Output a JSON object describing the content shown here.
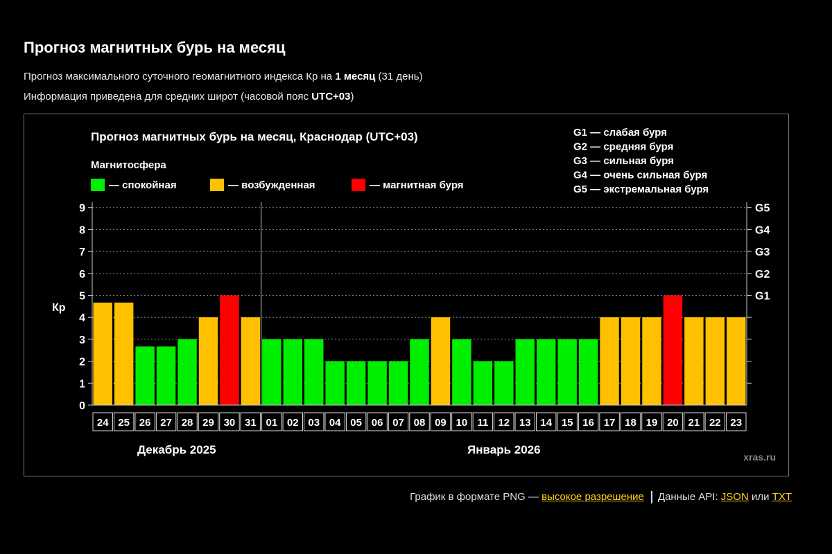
{
  "page": {
    "title": "Прогноз магнитных бурь на месяц",
    "info1": {
      "prefix": "Прогноз максимального суточного геомагнитного индекса Кр на ",
      "bold": "1 месяц",
      "suffix": " (31 день)"
    },
    "info2": {
      "prefix": "Информация приведена для средних широт (часовой пояс ",
      "bold": "UTC+03",
      "suffix": ")"
    }
  },
  "footer": {
    "png_label": "График в формате PNG — ",
    "png_link": "высокое разрешение",
    "api_label": "Данные API: ",
    "json_link": "JSON",
    "or_label": " или ",
    "txt_link": "TXT"
  },
  "colors": {
    "calm": "#00ee00",
    "excited": "#ffc000",
    "storm": "#ff0000"
  },
  "chart_data": {
    "type": "bar",
    "title": "Прогноз магнитных бурь на месяц, Краснодар (UTC+03)",
    "ylabel": "Кр",
    "ylim": [
      0,
      9
    ],
    "yticks": [
      "0",
      "1",
      "2",
      "3",
      "4",
      "5",
      "6",
      "7",
      "8",
      "9"
    ],
    "right_ticks": [
      {
        "value": 5,
        "label": "G1"
      },
      {
        "value": 6,
        "label": "G2"
      },
      {
        "value": 7,
        "label": "G3"
      },
      {
        "value": 8,
        "label": "G4"
      },
      {
        "value": 9,
        "label": "G5"
      }
    ],
    "grid": true,
    "legend_title": "Магнитосфера",
    "legend": [
      {
        "label": "— спокойная",
        "status": "calm"
      },
      {
        "label": "— возбужденная",
        "status": "excited"
      },
      {
        "label": "— магнитная буря",
        "status": "storm"
      }
    ],
    "g_legend": [
      "G1 — слабая буря",
      "G2 — средняя буря",
      "G3 — сильная буря",
      "G4 — очень сильная буря",
      "G5 — экстремальная буря"
    ],
    "months": [
      {
        "label": "Декабрь 2025",
        "start": 0,
        "end": 7
      },
      {
        "label": "Январь 2026",
        "start": 8,
        "end": 30
      }
    ],
    "categories": [
      "24",
      "25",
      "26",
      "27",
      "28",
      "29",
      "30",
      "31",
      "01",
      "02",
      "03",
      "04",
      "05",
      "06",
      "07",
      "08",
      "09",
      "10",
      "11",
      "12",
      "13",
      "14",
      "15",
      "16",
      "17",
      "18",
      "19",
      "20",
      "21",
      "22",
      "23"
    ],
    "values": [
      4.67,
      4.67,
      2.67,
      2.67,
      3,
      4,
      5,
      4,
      3,
      3,
      3,
      2,
      2,
      2,
      2,
      3,
      4,
      3,
      2,
      2,
      3,
      3,
      3,
      3,
      4,
      4,
      4,
      5,
      4,
      4,
      4
    ],
    "status": [
      "excited",
      "excited",
      "calm",
      "calm",
      "calm",
      "excited",
      "storm",
      "excited",
      "calm",
      "calm",
      "calm",
      "calm",
      "calm",
      "calm",
      "calm",
      "calm",
      "excited",
      "calm",
      "calm",
      "calm",
      "calm",
      "calm",
      "calm",
      "calm",
      "excited",
      "excited",
      "excited",
      "storm",
      "excited",
      "excited",
      "excited"
    ],
    "watermark": "xras.ru"
  }
}
